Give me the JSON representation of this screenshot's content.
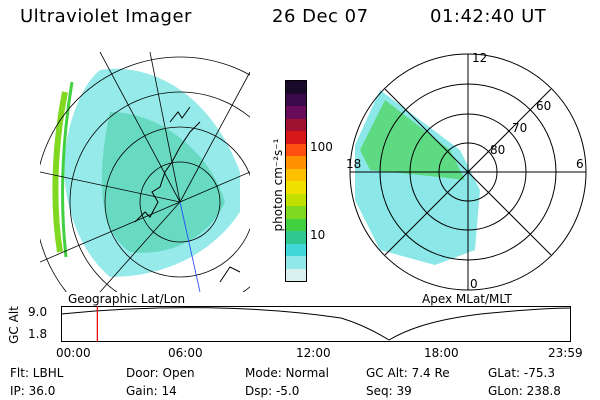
{
  "header": {
    "instrument": "Ultraviolet Imager",
    "date": "26 Dec 07",
    "time": "01:42:40 UT"
  },
  "geo_panel": {
    "label": "Geographic Lat/Lon"
  },
  "apex_panel": {
    "label": "Apex MLat/MLT",
    "mlt_labels": [
      "12",
      "18",
      "6",
      "0"
    ],
    "mlat_labels": [
      "60",
      "70",
      "80"
    ]
  },
  "colorbar": {
    "unit_label": "photon cm⁻²s⁻¹",
    "ticks": [
      "100",
      "10"
    ],
    "colors_top_to_bottom": [
      "#1a0a2a",
      "#3a0a4a",
      "#6a0a5a",
      "#a01030",
      "#d81818",
      "#ff5010",
      "#ff9000",
      "#ffc000",
      "#f0e000",
      "#c0e000",
      "#80d820",
      "#40d040",
      "#30c890",
      "#40d8d8",
      "#90e8e8",
      "#d8f0f0"
    ]
  },
  "alt_plot": {
    "ylabel": "GC Alt",
    "yticks": [
      "9.0",
      "1.8"
    ],
    "xticks": [
      "00:00",
      "06:00",
      "12:00",
      "18:00",
      "23:59"
    ],
    "marker_hour": 1.71
  },
  "info": {
    "flt": "Flt: LBHL",
    "door": "Door: Open",
    "mode": "Mode: Normal",
    "gc_alt": "GC Alt: 7.4 Re",
    "glat": "GLat: -75.3",
    "ip": "IP: 36.0",
    "gain": "Gain: 14",
    "dsp": "Dsp:   -5.0",
    "seq": "Seq: 39",
    "glon": "GLon: 238.8"
  }
}
